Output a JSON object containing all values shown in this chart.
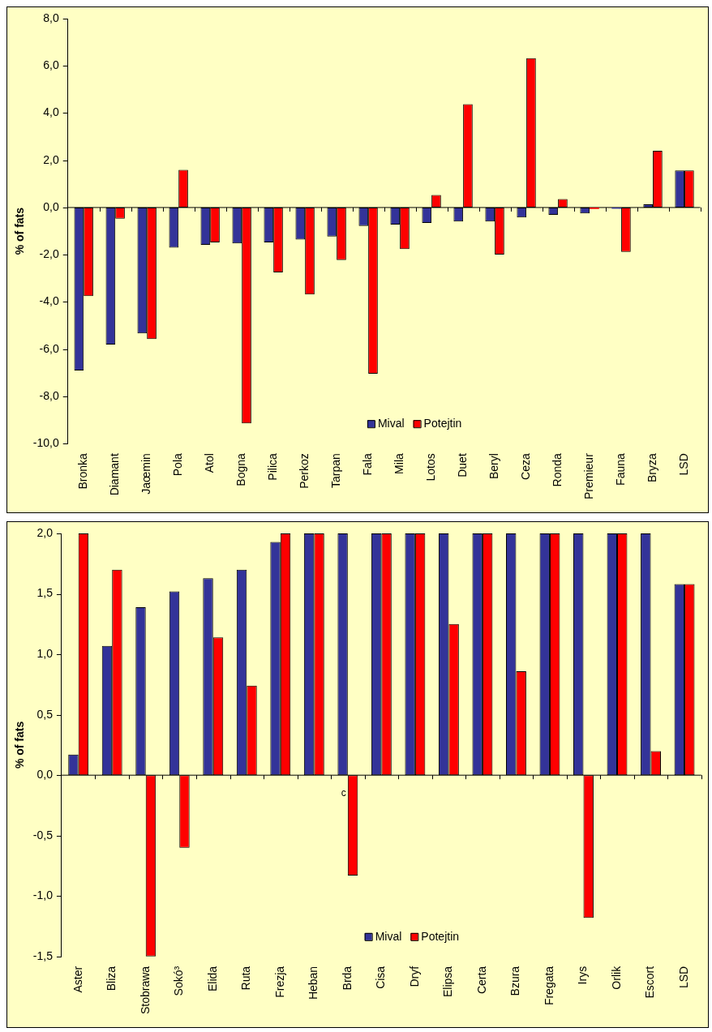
{
  "chart_data": [
    {
      "type": "bar",
      "ylabel": "% of fats",
      "categories": [
        "Bronka",
        "Diamant",
        "Jaœmin",
        "Pola",
        "Atol",
        "Bogna",
        "Pilica",
        "Perkoz",
        "Tarpan",
        "Fala",
        "Mila",
        "Lotos",
        "Duet",
        "Beryl",
        "Ceza",
        "Ronda",
        "Premieur",
        "Fauna",
        "Bryza",
        "LSD"
      ],
      "series": [
        {
          "name": "Mival",
          "color": "#333399",
          "values": [
            -6.9,
            -5.8,
            -5.33,
            -1.7,
            -1.58,
            -1.52,
            -1.48,
            -1.36,
            -1.23,
            -0.78,
            -0.72,
            -0.65,
            -0.59,
            -0.59,
            -0.42,
            -0.31,
            -0.25,
            -0.05,
            0.14,
            1.57
          ]
        },
        {
          "name": "Potejtin",
          "color": "#ff0000",
          "values": [
            -3.75,
            -0.47,
            -5.57,
            1.6,
            -1.48,
            -9.14,
            -2.75,
            -3.68,
            -2.22,
            -7.04,
            -1.76,
            0.53,
            4.38,
            -1.99,
            6.33,
            0.36,
            -0.06,
            -1.88,
            2.4,
            1.57
          ]
        }
      ],
      "ylim": [
        -10,
        8
      ],
      "yticks": [
        {
          "value": -10,
          "label": "-10,0"
        },
        {
          "value": -8,
          "label": "-8,0"
        },
        {
          "value": -6,
          "label": "-6,0"
        },
        {
          "value": -4,
          "label": "-4,0"
        },
        {
          "value": -2,
          "label": "-2,0"
        },
        {
          "value": 0,
          "label": "0,0"
        },
        {
          "value": 2,
          "label": "2,0"
        },
        {
          "value": 4,
          "label": "4,0"
        },
        {
          "value": 6,
          "label": "6,0"
        },
        {
          "value": 8,
          "label": "8,0"
        }
      ],
      "legend": "bottom"
    },
    {
      "type": "bar",
      "ylabel": "% of fats",
      "categories": [
        "Aster",
        "Bliza",
        "Stobrawa",
        "Sokó³",
        "Elida",
        "Ruta",
        "Frezja",
        "Heban",
        "Brda",
        "Cisa",
        "Dryf",
        "Elipsa",
        "Certa",
        "Bzura",
        "Fregata",
        "Irys",
        "Orlik",
        "Escort",
        "LSD"
      ],
      "series": [
        {
          "name": "Mival",
          "color": "#333399",
          "values": [
            0.17,
            1.07,
            1.39,
            1.52,
            1.63,
            1.7,
            1.93,
            2.0,
            2.0,
            2.0,
            2.0,
            2.0,
            2.0,
            2.0,
            2.0,
            2.0,
            2.0,
            2.0,
            1.58
          ]
        },
        {
          "name": "Potejtin",
          "color": "#ff0000",
          "values": [
            2.0,
            1.7,
            -1.5,
            -0.6,
            1.14,
            0.74,
            2.0,
            2.0,
            -0.83,
            2.0,
            2.0,
            1.25,
            2.0,
            0.86,
            2.0,
            -1.18,
            2.0,
            0.2,
            1.58
          ]
        }
      ],
      "ylim": [
        -1.5,
        2
      ],
      "yticks": [
        {
          "value": -1.5,
          "label": "-1,5"
        },
        {
          "value": -1,
          "label": "-1,0"
        },
        {
          "value": -0.5,
          "label": "-0,5"
        },
        {
          "value": 0,
          "label": "0,0"
        },
        {
          "value": 0.5,
          "label": "0,5"
        },
        {
          "value": 1,
          "label": "1,0"
        },
        {
          "value": 1.5,
          "label": "1,5"
        },
        {
          "value": 2,
          "label": "2,0"
        }
      ],
      "annotations": [
        {
          "text": "c",
          "x": "Brda",
          "y": -0.15
        }
      ],
      "legend": "bottom"
    }
  ]
}
